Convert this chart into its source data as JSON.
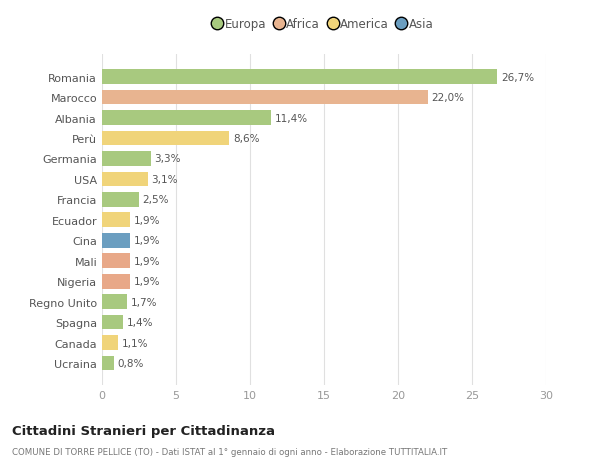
{
  "countries": [
    "Romania",
    "Marocco",
    "Albania",
    "Perù",
    "Germania",
    "USA",
    "Francia",
    "Ecuador",
    "Cina",
    "Mali",
    "Nigeria",
    "Regno Unito",
    "Spagna",
    "Canada",
    "Ucraina"
  ],
  "values": [
    26.7,
    22.0,
    11.4,
    8.6,
    3.3,
    3.1,
    2.5,
    1.9,
    1.9,
    1.9,
    1.9,
    1.7,
    1.4,
    1.1,
    0.8
  ],
  "labels": [
    "26,7%",
    "22,0%",
    "11,4%",
    "8,6%",
    "3,3%",
    "3,1%",
    "2,5%",
    "1,9%",
    "1,9%",
    "1,9%",
    "1,9%",
    "1,7%",
    "1,4%",
    "1,1%",
    "0,8%"
  ],
  "colors": [
    "#a8c97f",
    "#e8b490",
    "#a8c97f",
    "#f0d47a",
    "#a8c97f",
    "#f0d47a",
    "#a8c97f",
    "#f0d47a",
    "#6b9ec0",
    "#e8a888",
    "#e8a888",
    "#a8c97f",
    "#a8c97f",
    "#f0d47a",
    "#a8c97f"
  ],
  "legend_labels": [
    "Europa",
    "Africa",
    "America",
    "Asia"
  ],
  "legend_colors": [
    "#a8c97f",
    "#e8b490",
    "#f0d47a",
    "#6b9ec0"
  ],
  "title": "Cittadini Stranieri per Cittadinanza",
  "subtitle": "COMUNE DI TORRE PELLICE (TO) - Dati ISTAT al 1° gennaio di ogni anno - Elaborazione TUTTITALIA.IT",
  "xlim": [
    0,
    30
  ],
  "xticks": [
    0,
    5,
    10,
    15,
    20,
    25,
    30
  ],
  "background_color": "#ffffff",
  "grid_color": "#e0e0e0"
}
